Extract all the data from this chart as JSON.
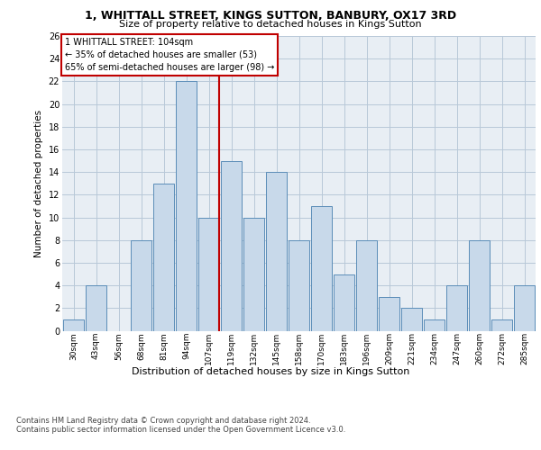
{
  "title1": "1, WHITTALL STREET, KINGS SUTTON, BANBURY, OX17 3RD",
  "title2": "Size of property relative to detached houses in Kings Sutton",
  "xlabel": "Distribution of detached houses by size in Kings Sutton",
  "ylabel": "Number of detached properties",
  "categories": [
    "30sqm",
    "43sqm",
    "56sqm",
    "68sqm",
    "81sqm",
    "94sqm",
    "107sqm",
    "119sqm",
    "132sqm",
    "145sqm",
    "158sqm",
    "170sqm",
    "183sqm",
    "196sqm",
    "209sqm",
    "221sqm",
    "234sqm",
    "247sqm",
    "260sqm",
    "272sqm",
    "285sqm"
  ],
  "values": [
    1,
    4,
    0,
    8,
    13,
    22,
    10,
    15,
    10,
    14,
    8,
    11,
    5,
    8,
    3,
    2,
    1,
    4,
    8,
    1,
    4
  ],
  "bar_color": "#c8d9ea",
  "bar_edge_color": "#5b8db8",
  "highlight_index": 6,
  "highlight_color": "#c00000",
  "annotation_text": "1 WHITTALL STREET: 104sqm\n← 35% of detached houses are smaller (53)\n65% of semi-detached houses are larger (98) →",
  "annotation_box_color": "#ffffff",
  "annotation_box_edge": "#c00000",
  "ylim": [
    0,
    26
  ],
  "yticks": [
    0,
    2,
    4,
    6,
    8,
    10,
    12,
    14,
    16,
    18,
    20,
    22,
    24,
    26
  ],
  "background_color": "#e8eef4",
  "footer1": "Contains HM Land Registry data © Crown copyright and database right 2024.",
  "footer2": "Contains public sector information licensed under the Open Government Licence v3.0."
}
